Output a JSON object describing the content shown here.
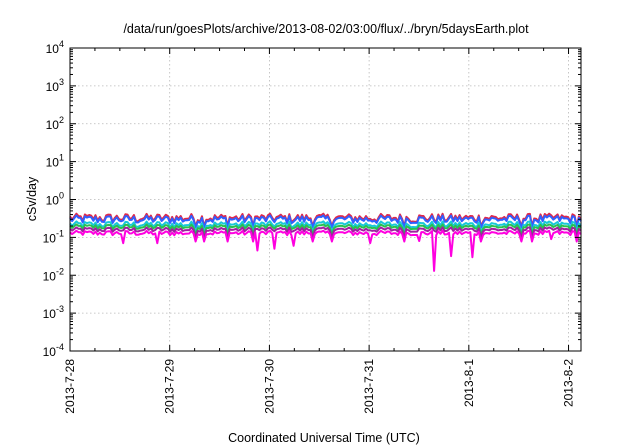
{
  "chart_data": {
    "type": "line",
    "title": "/data/run/goesPlots/archive/2013-08-02/03:00/flux/../bryn/5daysEarth.plot",
    "xlabel": "Coordinated Universal Time (UTC)",
    "ylabel": "cSv/day",
    "yscale": "log",
    "ylim": [
      0.0001,
      10000
    ],
    "xlim": [
      "2013-07-28",
      "2013-08-02 03:00"
    ],
    "grid": true,
    "y_ticks": [
      {
        "value": 0.0001,
        "base": "10",
        "exp": "-4"
      },
      {
        "value": 0.001,
        "base": "10",
        "exp": "-3"
      },
      {
        "value": 0.01,
        "base": "10",
        "exp": "-2"
      },
      {
        "value": 0.1,
        "base": "10",
        "exp": "-1"
      },
      {
        "value": 1,
        "base": "10",
        "exp": "0"
      },
      {
        "value": 10,
        "base": "10",
        "exp": "1"
      },
      {
        "value": 100,
        "base": "10",
        "exp": "2"
      },
      {
        "value": 1000,
        "base": "10",
        "exp": "3"
      },
      {
        "value": 10000,
        "base": "10",
        "exp": "4"
      }
    ],
    "x_ticks": [
      {
        "date": "2013-07-28",
        "label": "2013-7-28"
      },
      {
        "date": "2013-07-29",
        "label": "2013-7-29"
      },
      {
        "date": "2013-07-30",
        "label": "2013-7-30"
      },
      {
        "date": "2013-07-31",
        "label": "2013-7-31"
      },
      {
        "date": "2013-08-01",
        "label": "2013-8-1"
      },
      {
        "date": "2013-08-02",
        "label": "2013-8-2"
      }
    ],
    "series": [
      {
        "color": "#e0284a",
        "base": 0.33,
        "noise": 0.28,
        "dips": []
      },
      {
        "color": "#3060ff",
        "base": 0.3,
        "noise": 0.26,
        "dips": []
      },
      {
        "color": "#18c8d8",
        "base": 0.22,
        "noise": 0.2,
        "dips": []
      },
      {
        "color": "#28c050",
        "base": 0.19,
        "noise": 0.16,
        "dips": []
      },
      {
        "color": "#a020a0",
        "base": 0.16,
        "noise": 0.15,
        "dips": []
      },
      {
        "color": "#ff00e0",
        "base": 0.13,
        "noise": 0.15,
        "dips": [
          {
            "date": "2013-07-28 13:00",
            "value": 0.07
          },
          {
            "date": "2013-07-28 21:00",
            "value": 0.07
          },
          {
            "date": "2013-07-29 21:00",
            "value": 0.045
          },
          {
            "date": "2013-07-30 01:00",
            "value": 0.05
          },
          {
            "date": "2013-07-30 06:00",
            "value": 0.06
          },
          {
            "date": "2013-07-31 00:30",
            "value": 0.07
          },
          {
            "date": "2013-07-31 12:00",
            "value": 0.08
          },
          {
            "date": "2013-07-31 15:30",
            "value": 0.013
          },
          {
            "date": "2013-07-31 19:30",
            "value": 0.032
          },
          {
            "date": "2013-08-01 01:00",
            "value": 0.03
          },
          {
            "date": "2013-08-01 20:00",
            "value": 0.09
          }
        ]
      }
    ]
  }
}
